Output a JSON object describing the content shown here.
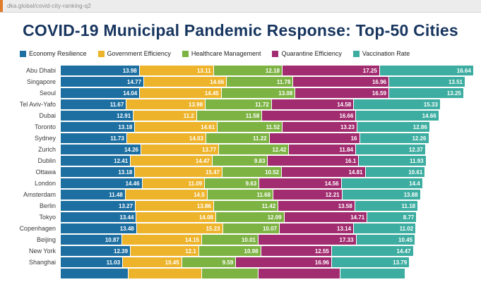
{
  "browser": {
    "url": "dka.global/covid-city-ranking-q2"
  },
  "header": {
    "title": "COVID-19 Municipal Pandemic Response: Top-50 Cities"
  },
  "chart_data": {
    "type": "bar",
    "orientation": "horizontal",
    "stacked": true,
    "grid": false,
    "legend_position": "top-left",
    "xmax": 73.8,
    "legend": [
      {
        "label": "Economy Resilience",
        "color": "#1d6fa1"
      },
      {
        "label": "Government Efficiency",
        "color": "#edb32a"
      },
      {
        "label": "Healthcare Management",
        "color": "#7db343"
      },
      {
        "label": "Quarantine Efficiency",
        "color": "#a22c70"
      },
      {
        "label": "Vaccination Rate",
        "color": "#3cada0"
      }
    ],
    "rows": [
      {
        "city": "Abu Dhabi",
        "values": [
          13.98,
          13.11,
          12.18,
          17.25,
          16.64
        ]
      },
      {
        "city": "Singapore",
        "values": [
          14.77,
          14.66,
          11.78,
          16.96,
          13.51
        ]
      },
      {
        "city": "Seoul",
        "values": [
          14.04,
          14.45,
          13.08,
          16.59,
          13.25
        ]
      },
      {
        "city": "Tel Aviv-Yafo",
        "values": [
          11.67,
          13.98,
          11.72,
          14.58,
          15.33
        ]
      },
      {
        "city": "Dubai",
        "values": [
          12.91,
          11.2,
          11.58,
          16.66,
          14.66
        ]
      },
      {
        "city": "Toronto",
        "values": [
          13.18,
          14.61,
          11.52,
          13.23,
          12.86
        ]
      },
      {
        "city": "Sydney",
        "values": [
          11.73,
          14.03,
          11.22,
          16,
          12.26
        ]
      },
      {
        "city": "Zurich",
        "values": [
          14.26,
          13.77,
          12.42,
          11.84,
          12.37
        ]
      },
      {
        "city": "Dublin",
        "values": [
          12.41,
          14.47,
          9.83,
          16.1,
          11.93
        ]
      },
      {
        "city": "Ottawa",
        "values": [
          13.18,
          15.47,
          10.52,
          14.81,
          10.61
        ]
      },
      {
        "city": "London",
        "values": [
          14.46,
          11.09,
          9.63,
          14.56,
          14.4
        ]
      },
      {
        "city": "Amsterdam",
        "values": [
          11.48,
          14.5,
          11.68,
          12.21,
          13.88
        ]
      },
      {
        "city": "Berlin",
        "values": [
          13.27,
          13.86,
          11.42,
          13.58,
          11.18
        ]
      },
      {
        "city": "Tokyo",
        "values": [
          13.44,
          14.08,
          12.09,
          14.71,
          8.77
        ]
      },
      {
        "city": "Copenhagen",
        "values": [
          13.48,
          15.23,
          10.07,
          13.14,
          11.02
        ]
      },
      {
        "city": "Beijing",
        "values": [
          10.87,
          14.15,
          10.01,
          17.33,
          10.45
        ]
      },
      {
        "city": "New York",
        "values": [
          12.39,
          12.1,
          10.98,
          12.55,
          14.47
        ]
      },
      {
        "city": "Shanghai",
        "values": [
          11.03,
          10.45,
          9.59,
          16.96,
          13.79
        ]
      },
      {
        "city": "",
        "values": [
          12.0,
          13.0,
          10.0,
          14.5,
          11.5
        ],
        "cutoff": true
      }
    ]
  }
}
